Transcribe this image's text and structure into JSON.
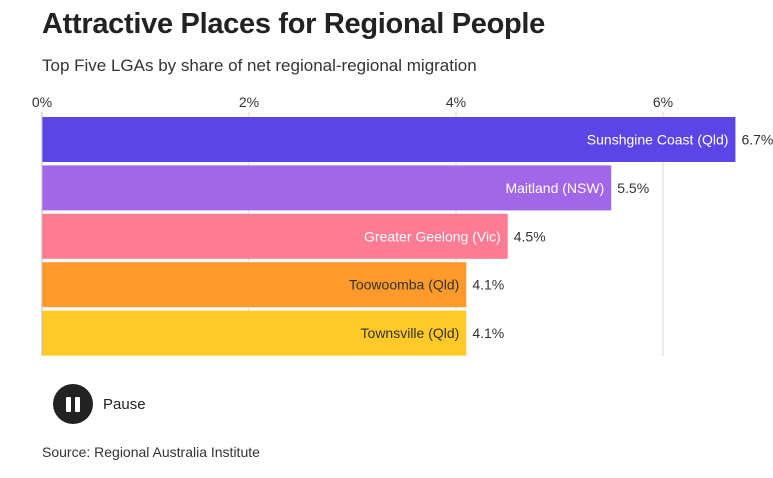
{
  "header": {
    "title": "Attractive Places for Regional People",
    "subtitle": "Top Five LGAs by share of net regional-regional migration"
  },
  "chart_data": {
    "type": "bar",
    "orientation": "horizontal",
    "title": "Attractive Places for Regional People",
    "subtitle": "Top Five LGAs by share of net regional-regional migration",
    "xlim": [
      0,
      6.7
    ],
    "x_ticks": [
      0,
      2,
      4,
      6
    ],
    "tick_labels": [
      "0%",
      "2%",
      "4%",
      "6%"
    ],
    "tick_position": "top",
    "grid": true,
    "categories": [
      "Sunshgine Coast (Qld)",
      "Maitland (NSW)",
      "Greater Geelong (Vic)",
      "Toowoomba (Qld)",
      "Townsville (Qld)"
    ],
    "values": [
      6.7,
      5.5,
      4.5,
      4.1,
      4.1
    ],
    "value_labels": [
      "6.7%",
      "5.5%",
      "4.5%",
      "4.1%",
      "4.1%"
    ],
    "colors": [
      "#5b45e6",
      "#a266e8",
      "#ff7b92",
      "#ff9a2b",
      "#ffc928"
    ],
    "label_colors": [
      "#ffffff",
      "#ffffff",
      "#ffffff",
      "#333333",
      "#333333"
    ]
  },
  "controls": {
    "pause_label": "Pause",
    "pause_icon": "pause-icon"
  },
  "footer": {
    "source": "Source: Regional Australia Institute"
  }
}
